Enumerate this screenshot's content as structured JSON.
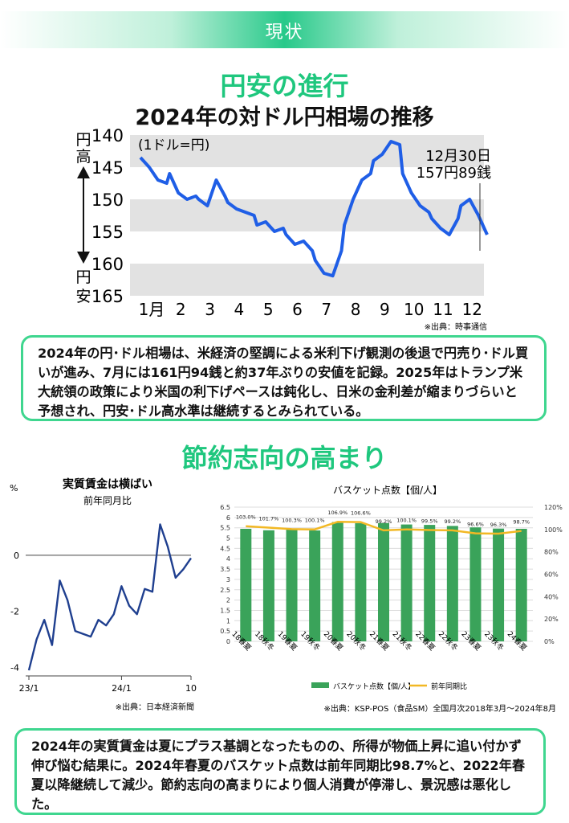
{
  "header": {
    "label": "現状"
  },
  "section1": {
    "heading": "円安の進行",
    "chart_title": "2024年の対ドル円相場の推移",
    "unit": "(1ドル=円)",
    "axis_top_word": "円高",
    "axis_bottom_word": "円安",
    "annotation_date": "12月30日",
    "annotation_value": "157円89銭",
    "source": "※出典：時事通信",
    "paragraph": "2024年の円･ドル相場は、米経済の堅調による米利下げ観測の後退で円売り･ドル買いが進み、7月には161円94銭と約37年ぶりの安値を記録。2025年はトランプ米大統領の政策により米国の利下げペースは鈍化し、日米の金利差が縮まりづらいと予想され、円安･ドル高水準は継続するとみられている。"
  },
  "section2": {
    "heading": "節約志向の高まり",
    "wage": {
      "title": "実質賃金は横ばい",
      "subtitle": "前年同月比",
      "unit": "%",
      "source": "※出典：日本経済新聞"
    },
    "basket": {
      "title": "バスケット点数【個/人】",
      "source": "※出典：KSP-POS（食品SM）全国月次2018年3月～2024年8月",
      "legend_bar": "バスケット点数【個/人】",
      "legend_line": "前年同期比"
    },
    "paragraph": "2024年の実質賃金は夏にプラス基調となったものの、所得が物価上昇に追い付かず伸び悩む結果に。2024年春夏のバスケット点数は前年同期比98.7%と、2022年春夏以降継続して減少。節約志向の高まりにより個人消費が停滞し、景況感は悪化した。"
  },
  "colors": {
    "accent": "#1fc77e",
    "fx_line": "#1f5ee6",
    "bar": "#3aa35a",
    "ratio_line": "#f2b824",
    "wage_line": "#1f3f8f"
  },
  "chart_data": [
    {
      "type": "line",
      "title": "2024年の対ドル円相場の推移",
      "ylabel": "(1ドル=円)",
      "y_inverted": true,
      "ylim": [
        140,
        165
      ],
      "yticks": [
        140,
        145,
        150,
        155,
        160,
        165
      ],
      "categories": [
        "1月",
        "2",
        "3",
        "4",
        "5",
        "6",
        "7",
        "8",
        "9",
        "10",
        "11",
        "12"
      ],
      "x": [
        0.0,
        0.3,
        0.6,
        0.9,
        1.0,
        1.3,
        1.6,
        1.9,
        2.0,
        2.3,
        2.6,
        2.9,
        3.0,
        3.3,
        3.6,
        3.9,
        4.0,
        4.3,
        4.6,
        4.9,
        5.0,
        5.3,
        5.6,
        5.9,
        6.0,
        6.3,
        6.6,
        6.9,
        7.0,
        7.3,
        7.6,
        7.9,
        8.0,
        8.3,
        8.6,
        8.9,
        9.0,
        9.3,
        9.6,
        9.9,
        10.0,
        10.3,
        10.6,
        10.9,
        11.0,
        11.3,
        11.6,
        11.9
      ],
      "values": [
        143.5,
        145,
        147,
        147.5,
        146,
        149,
        150,
        149.5,
        150,
        151,
        147,
        149.5,
        150.5,
        151.5,
        152,
        152.5,
        154,
        153.5,
        155,
        154.5,
        155.5,
        157,
        156.5,
        158,
        159.5,
        161.5,
        161.9,
        158,
        154,
        150,
        147,
        146,
        144,
        143,
        141,
        141.5,
        146,
        149,
        151,
        152,
        153,
        154.5,
        155.5,
        153,
        151,
        150,
        152.5,
        155.5
      ],
      "annotation": {
        "label": "12月30日 157円89銭",
        "value": 157.89
      }
    },
    {
      "type": "line",
      "title": "実質賃金は横ばい",
      "subtitle": "前年同月比",
      "ylabel": "%",
      "ylim": [
        -4.3,
        1.6
      ],
      "yticks": [
        0,
        -2,
        -4
      ],
      "xticks": [
        "23/1",
        "24/1",
        "10"
      ],
      "x": [
        1,
        2,
        3,
        4,
        5,
        6,
        7,
        8,
        9,
        10,
        11,
        12,
        13,
        14,
        15,
        16,
        17,
        18,
        19,
        20,
        21,
        22
      ],
      "values": [
        -4.1,
        -3.0,
        -2.3,
        -3.2,
        -0.9,
        -1.6,
        -2.7,
        -2.8,
        -2.9,
        -2.3,
        -2.5,
        -2.1,
        -1.1,
        -1.8,
        -2.1,
        -1.2,
        -1.3,
        1.1,
        0.3,
        -0.8,
        -0.5,
        -0.1
      ]
    },
    {
      "type": "bar",
      "title": "バスケット点数【個/人】",
      "categories": [
        "18春夏",
        "18秋冬",
        "19春夏",
        "19秋冬",
        "20春夏",
        "20秋冬",
        "21春夏",
        "21秋冬",
        "22春夏",
        "22秋冬",
        "23春夏",
        "23秋冬",
        "24春夏"
      ],
      "ylim": [
        0,
        6.5
      ],
      "yticks": [
        0,
        0.5,
        1,
        1.5,
        2,
        2.5,
        3,
        3.5,
        4,
        4.5,
        5,
        5.5,
        6,
        6.5
      ],
      "y2lim": [
        0,
        120
      ],
      "y2ticks": [
        "0%",
        "20%",
        "40%",
        "60%",
        "80%",
        "100%",
        "120%"
      ],
      "series": [
        {
          "name": "バスケット点数【個/人】",
          "type": "bar",
          "values": [
            5.45,
            5.38,
            5.42,
            5.37,
            5.78,
            5.72,
            5.73,
            5.66,
            5.64,
            5.59,
            5.52,
            5.46,
            5.45
          ]
        },
        {
          "name": "前年同期比",
          "type": "line",
          "axis": "right",
          "values": [
            103.0,
            101.7,
            100.3,
            100.1,
            106.9,
            106.6,
            99.2,
            100.1,
            99.5,
            99.2,
            96.6,
            96.3,
            98.7
          ],
          "labels": [
            "103.0%",
            "101.7%",
            "100.3%",
            "100.1%",
            "106.9%",
            "106.6%",
            "99.2%",
            "100.1%",
            "99.5%",
            "99.2%",
            "96.6%",
            "96.3%",
            "98.7%"
          ]
        }
      ]
    }
  ]
}
